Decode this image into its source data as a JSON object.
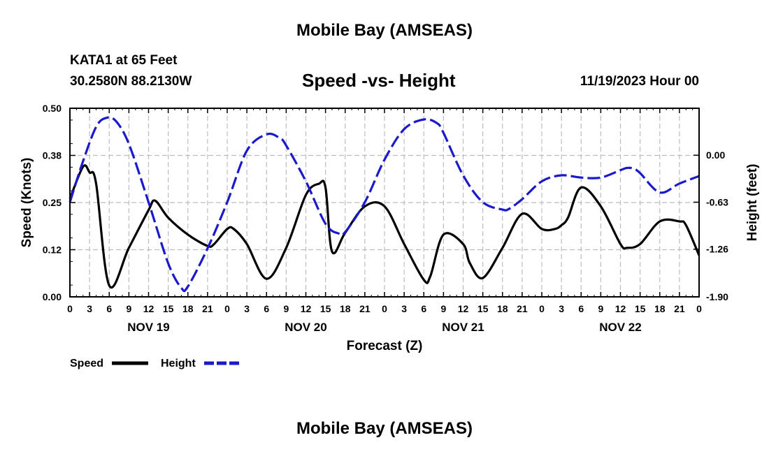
{
  "header": {
    "title": "Mobile Bay (AMSEAS)",
    "station": "KATA1 at 65 Feet",
    "coords": "30.2580N  88.2130W",
    "subtitle": "Speed -vs- Height",
    "run": "11/19/2023 Hour 00"
  },
  "footer": {
    "title": "Mobile Bay (AMSEAS)"
  },
  "colors": {
    "speed": "#000000",
    "height": "#1a1acc",
    "grid": "#bdbdbd"
  },
  "chart_data": {
    "type": "line",
    "title": "Speed -vs- Height",
    "xlabel": "Forecast (Z)",
    "ylabel": "Speed (Knots)",
    "y2label": "Height (feet)",
    "xlim": [
      0,
      96
    ],
    "ylim": [
      0,
      0.5
    ],
    "y2lim": [
      -1.9,
      0.63
    ],
    "yticks": [
      "0.00",
      "0.12",
      "0.25",
      "0.38",
      "0.50"
    ],
    "y2ticks": [
      "-1.90",
      "-1.26",
      "-0.63",
      "0.00"
    ],
    "xticks": [
      "0",
      "3",
      "6",
      "9",
      "12",
      "15",
      "18",
      "21",
      "0",
      "3",
      "6",
      "9",
      "12",
      "15",
      "18",
      "21",
      "0",
      "3",
      "6",
      "9",
      "12",
      "15",
      "18",
      "21",
      "0",
      "3",
      "6",
      "9",
      "12",
      "15",
      "18",
      "21",
      "0"
    ],
    "days": [
      {
        "label": "NOV 19",
        "hour": 12
      },
      {
        "label": "NOV 20",
        "hour": 36
      },
      {
        "label": "NOV 21",
        "hour": 60
      },
      {
        "label": "NOV 22",
        "hour": 84
      }
    ],
    "legend": [
      {
        "name": "Speed",
        "style": "solid"
      },
      {
        "name": "Height",
        "style": "dashed"
      }
    ],
    "series": [
      {
        "name": "Speed",
        "axis": "left",
        "units": "knots",
        "x": [
          0,
          2,
          3,
          4,
          6,
          9,
          12,
          13,
          15,
          18,
          21,
          22,
          24,
          25,
          27,
          30,
          33,
          36,
          38,
          39,
          40,
          42,
          45,
          48,
          51,
          54,
          55,
          57,
          60,
          61,
          63,
          66,
          69,
          72,
          74,
          75,
          76,
          78,
          81,
          84,
          85,
          87,
          90,
          93,
          94,
          96
        ],
        "y": [
          0.26,
          0.345,
          0.33,
          0.3,
          0.03,
          0.13,
          0.23,
          0.255,
          0.21,
          0.165,
          0.135,
          0.14,
          0.18,
          0.18,
          0.14,
          0.048,
          0.13,
          0.27,
          0.3,
          0.29,
          0.12,
          0.17,
          0.24,
          0.24,
          0.14,
          0.045,
          0.055,
          0.165,
          0.14,
          0.09,
          0.05,
          0.13,
          0.22,
          0.18,
          0.18,
          0.19,
          0.21,
          0.29,
          0.24,
          0.14,
          0.13,
          0.14,
          0.2,
          0.2,
          0.19,
          0.11
        ]
      },
      {
        "name": "Height",
        "axis": "right",
        "units": "feet",
        "x": [
          0,
          2,
          4,
          5.5,
          7,
          9,
          12,
          15,
          17,
          18,
          21,
          24,
          27,
          30,
          32,
          33,
          36,
          39,
          41,
          42,
          45,
          48,
          51,
          54,
          56,
          57,
          60,
          63,
          66,
          67,
          69,
          72,
          75,
          78,
          81,
          84,
          85,
          86,
          87,
          90,
          93,
          96
        ],
        "y": [
          -0.63,
          -0.08,
          0.38,
          0.5,
          0.46,
          0.15,
          -0.63,
          -1.45,
          -1.78,
          -1.76,
          -1.25,
          -0.63,
          0.06,
          0.28,
          0.23,
          0.13,
          -0.35,
          -0.92,
          -1.05,
          -1.03,
          -0.63,
          -0.06,
          0.35,
          0.48,
          0.43,
          0.3,
          -0.27,
          -0.63,
          -0.73,
          -0.72,
          -0.59,
          -0.35,
          -0.27,
          -0.3,
          -0.3,
          -0.2,
          -0.17,
          -0.18,
          -0.24,
          -0.5,
          -0.38,
          -0.28
        ]
      }
    ]
  }
}
